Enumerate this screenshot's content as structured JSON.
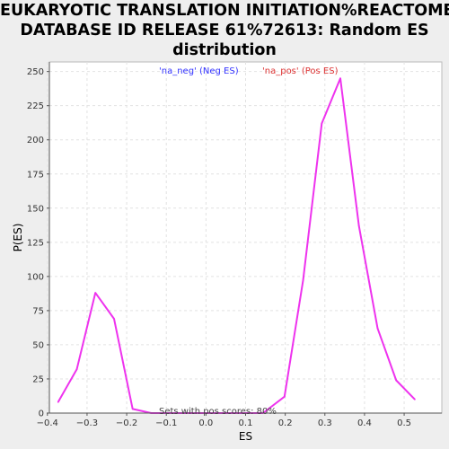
{
  "title_lines": [
    "EUKARYOTIC TRANSLATION INITIATION%REACTOME",
    "DATABASE ID RELEASE 61%72613: Random ES",
    "distribution"
  ],
  "chart_data": {
    "type": "line",
    "title": "EUKARYOTIC TRANSLATION INITIATION%REACTOME DATABASE ID RELEASE 61%72613: Random ES distribution",
    "xlabel": "ES",
    "ylabel": "P(ES)",
    "xlim": [
      -0.395,
      0.595
    ],
    "ylim": [
      0,
      257
    ],
    "x_ticks": [
      -0.4,
      -0.3,
      -0.2,
      -0.1,
      0.0,
      0.1,
      0.2,
      0.3,
      0.4,
      0.5
    ],
    "x_tick_labels": [
      "−0.4",
      "−0.3",
      "−0.2",
      "−0.1",
      "0.0",
      "0.1",
      "0.2",
      "0.3",
      "0.4",
      "0.5"
    ],
    "y_ticks": [
      0,
      25,
      50,
      75,
      100,
      125,
      150,
      175,
      200,
      225,
      250
    ],
    "y_tick_labels": [
      "0",
      "25",
      "50",
      "75",
      "100",
      "125",
      "150",
      "175",
      "200",
      "225",
      "250"
    ],
    "grid": true,
    "legend": [
      {
        "label": "'na_neg' (Neg ES)",
        "color": "#3333ff"
      },
      {
        "label": "'na_pos' (Pos ES)",
        "color": "#dd3333"
      }
    ],
    "legend_placement": "top-center",
    "annotation": "Sets with pos scores: 80%",
    "series": [
      {
        "color": "#ee33ee",
        "x": [
          -0.373,
          -0.326,
          -0.279,
          -0.232,
          -0.185,
          -0.138,
          -0.091,
          -0.044,
          0.003,
          0.05,
          0.097,
          0.144,
          0.198,
          0.245,
          0.292,
          0.339,
          0.386,
          0.433,
          0.48,
          0.527
        ],
        "y": [
          8,
          32,
          88,
          69,
          3,
          0,
          0,
          0,
          0,
          0,
          0,
          0,
          12,
          97,
          212,
          245,
          137,
          62,
          24,
          10
        ]
      }
    ]
  },
  "colors": {
    "plot_bg": "#ffffff",
    "page_bg": "#eeeeee",
    "grid": "#e2e2e2",
    "axis": "#555555"
  }
}
